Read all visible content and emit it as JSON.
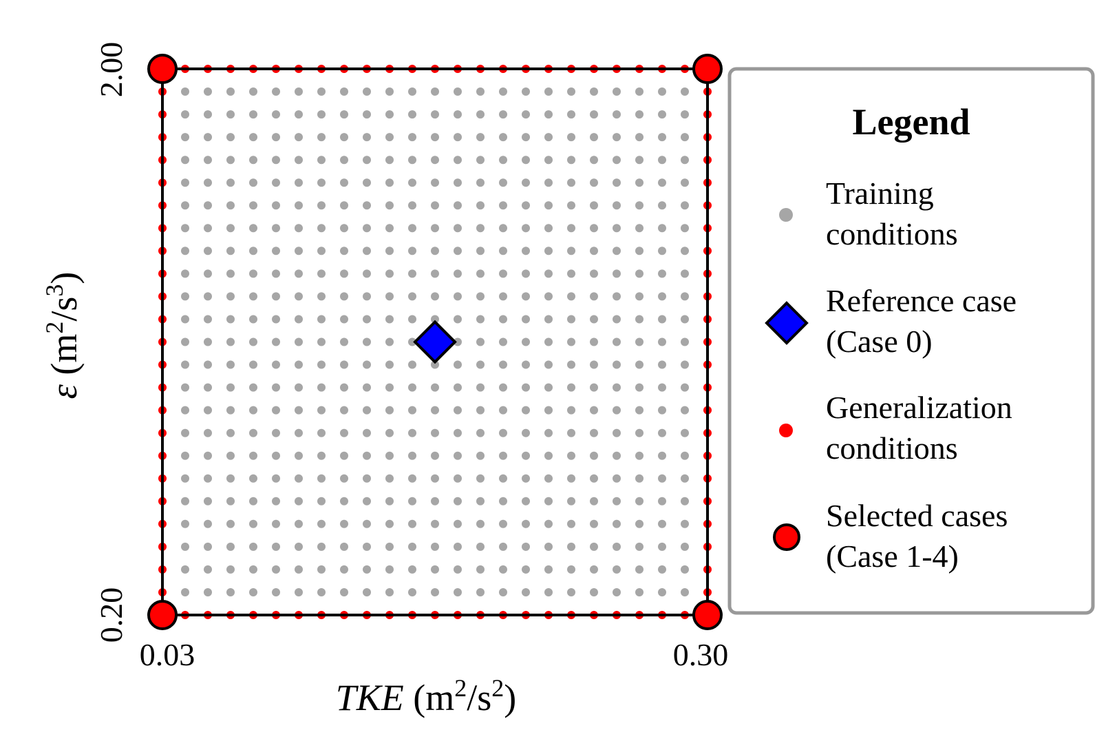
{
  "chart_data": {
    "type": "scatter",
    "title": "",
    "x_label": {
      "symbol": "TKE",
      "units": "(m2/s2)"
    },
    "y_label": {
      "symbol": "ε",
      "units": "(m2/s3)"
    },
    "xlim": [
      0.03,
      0.3
    ],
    "ylim": [
      0.2,
      2.0
    ],
    "x_ticks": [
      "0.03",
      "0.30"
    ],
    "y_ticks": [
      "0.20",
      "2.00"
    ],
    "grid": {
      "columns": 25,
      "rows": 25
    },
    "series": [
      {
        "name": "Training conditions",
        "marker": "small-dot",
        "color": "#a6a6a6",
        "region": "interior grid points"
      },
      {
        "name": "Generalization conditions",
        "marker": "small-dot",
        "color": "#ff0000",
        "region": "boundary grid points"
      },
      {
        "name": "Reference case (Case 0)",
        "marker": "diamond",
        "color": "#0000ff",
        "points": [
          {
            "x": 0.165,
            "y": 1.1
          }
        ]
      },
      {
        "name": "Selected cases (Case 1-4)",
        "marker": "circle",
        "color": "#ff0000",
        "points": [
          {
            "x": 0.03,
            "y": 0.2
          },
          {
            "x": 0.3,
            "y": 0.2
          },
          {
            "x": 0.03,
            "y": 2.0
          },
          {
            "x": 0.3,
            "y": 2.0
          }
        ]
      }
    ],
    "legend": {
      "title": "Legend",
      "position": "right",
      "entries": [
        {
          "line1": "Training",
          "line2": "conditions"
        },
        {
          "line1": "Reference case",
          "line2": "(Case 0)"
        },
        {
          "line1": "Generalization",
          "line2": "conditions"
        },
        {
          "line1": "Selected cases",
          "line2": "(Case 1-4)"
        }
      ]
    }
  }
}
